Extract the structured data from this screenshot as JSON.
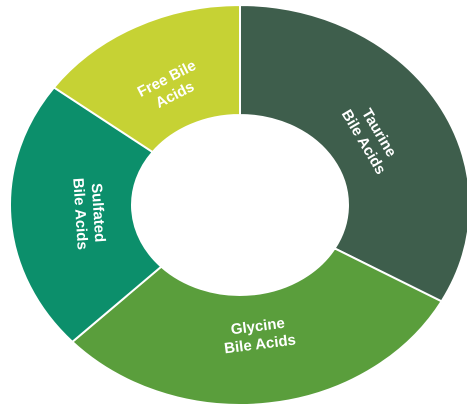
{
  "chart_data": {
    "type": "pie",
    "variant": "donut",
    "title": "",
    "slices": [
      {
        "label_lines": [
          "Taurine",
          "Bile Acids"
        ],
        "value": 33,
        "color": "#3e5e4c"
      },
      {
        "label_lines": [
          "Glycine",
          "Bile Acids"
        ],
        "value": 30,
        "color": "#5a9e3c"
      },
      {
        "label_lines": [
          "Sulfated",
          "Bile Acids"
        ],
        "value": 22,
        "color": "#0c8f6b"
      },
      {
        "label_lines": [
          "Free Bile",
          "Acids"
        ],
        "value": 15,
        "color": "#c6d234"
      }
    ],
    "start_angle_deg": 0,
    "direction": "clockwise",
    "legend": "none",
    "grid": false
  }
}
